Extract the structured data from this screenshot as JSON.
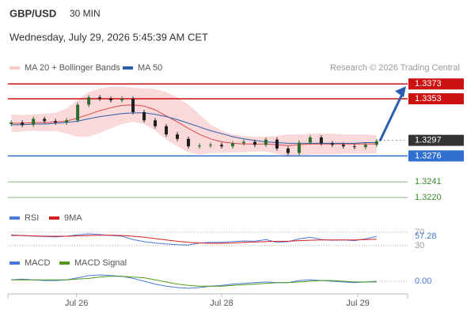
{
  "header": {
    "symbol": "GBP/USD",
    "interval": "30 MIN",
    "datetime": "Wednesday, July 29, 2026 5:45:39 AM CET",
    "source": "Research © 2026 Trading Central"
  },
  "chart_data": [
    {
      "type": "candlestick",
      "x_labels": [
        {
          "value": 5.9,
          "label": "Jul 26"
        },
        {
          "value": 19,
          "label": "Jul 28"
        },
        {
          "value": 31.3,
          "label": "Jul 29"
        }
      ],
      "xlim": [
        -0.3,
        35.8
      ],
      "ylim": [
        1.3204,
        1.3385
      ],
      "up_color": "#2e6b2e",
      "down_color": "#1e1e1e",
      "open": [
        1.3319,
        1.3321,
        1.3318,
        1.3326,
        1.3323,
        1.3321,
        1.3324,
        1.3345,
        1.3355,
        1.3353,
        1.3351,
        1.3353,
        1.3335,
        1.3324,
        1.3316,
        1.3305,
        1.3299,
        1.3289,
        1.329,
        1.3291,
        1.3289,
        1.3293,
        1.3295,
        1.3291,
        1.3298,
        1.3286,
        1.328,
        1.3294,
        1.3301,
        1.3293,
        1.3291,
        1.3289,
        1.3288,
        1.3291
      ],
      "high": [
        1.3324,
        1.3324,
        1.3329,
        1.3329,
        1.3326,
        1.3327,
        1.3348,
        1.3358,
        1.3358,
        1.3356,
        1.3356,
        1.3356,
        1.3338,
        1.3327,
        1.3319,
        1.3308,
        1.3302,
        1.3293,
        1.3294,
        1.3294,
        1.3296,
        1.3298,
        1.3298,
        1.3301,
        1.3301,
        1.3289,
        1.3297,
        1.3304,
        1.3304,
        1.3296,
        1.3294,
        1.3292,
        1.3294,
        1.3299
      ],
      "low": [
        1.3316,
        1.3315,
        1.3315,
        1.332,
        1.3318,
        1.3318,
        1.3321,
        1.3342,
        1.335,
        1.3348,
        1.3348,
        1.3332,
        1.3321,
        1.3313,
        1.3302,
        1.3296,
        1.3286,
        1.3286,
        1.3287,
        1.3286,
        1.3286,
        1.329,
        1.3288,
        1.3288,
        1.3283,
        1.3277,
        1.3277,
        1.3291,
        1.329,
        1.3288,
        1.3286,
        1.3285,
        1.3285,
        1.3288
      ],
      "close": [
        1.3321,
        1.3318,
        1.3326,
        1.3323,
        1.3321,
        1.3324,
        1.3345,
        1.3355,
        1.3353,
        1.3351,
        1.3353,
        1.3335,
        1.3324,
        1.3316,
        1.3305,
        1.3299,
        1.3289,
        1.329,
        1.3291,
        1.3289,
        1.3293,
        1.3295,
        1.3291,
        1.3298,
        1.3286,
        1.328,
        1.3294,
        1.3301,
        1.3293,
        1.3291,
        1.3289,
        1.3288,
        1.3291,
        1.3296
      ],
      "series": [
        {
          "name": "MA 20 + Bollinger Bands",
          "color": "#e04848",
          "band_color": "#f7c9c9",
          "values": [
            1.332,
            1.332,
            1.3321,
            1.3321,
            1.3322,
            1.3323,
            1.3327,
            1.3332,
            1.3337,
            1.3341,
            1.3344,
            1.3345,
            1.3343,
            1.3338,
            1.333,
            1.3322,
            1.3313,
            1.3305,
            1.3299,
            1.3295,
            1.3293,
            1.3292,
            1.3292,
            1.3292,
            1.3291,
            1.329,
            1.3291,
            1.3292,
            1.3292,
            1.3292,
            1.3292,
            1.3292,
            1.3292,
            1.3292
          ],
          "upper": [
            1.3332,
            1.3331,
            1.3332,
            1.3333,
            1.3334,
            1.334,
            1.3352,
            1.3362,
            1.3367,
            1.3369,
            1.3369,
            1.3368,
            1.3367,
            1.3366,
            1.3362,
            1.3355,
            1.3345,
            1.3332,
            1.3318,
            1.331,
            1.3305,
            1.3303,
            1.3302,
            1.3302,
            1.3303,
            1.3305,
            1.3305,
            1.3306,
            1.3306,
            1.3306,
            1.3305,
            1.3305,
            1.3305,
            1.3304
          ],
          "lower": [
            1.3308,
            1.3309,
            1.331,
            1.3309,
            1.331,
            1.3306,
            1.3302,
            1.3302,
            1.3307,
            1.3313,
            1.3319,
            1.3322,
            1.3319,
            1.331,
            1.3298,
            1.3289,
            1.3281,
            1.3278,
            1.328,
            1.328,
            1.3281,
            1.3281,
            1.3282,
            1.3282,
            1.3279,
            1.3275,
            1.3277,
            1.3278,
            1.3278,
            1.3278,
            1.3279,
            1.3279,
            1.3279,
            1.328
          ]
        },
        {
          "name": "MA 50",
          "color": "#2c5ea8",
          "values": [
            1.3318,
            1.3318,
            1.3319,
            1.3319,
            1.332,
            1.3321,
            1.3323,
            1.3326,
            1.3329,
            1.3331,
            1.3333,
            1.3334,
            1.3334,
            1.3332,
            1.3329,
            1.3325,
            1.332,
            1.3315,
            1.331,
            1.3306,
            1.3302,
            1.3299,
            1.3297,
            1.3295,
            1.3294,
            1.3293,
            1.3293,
            1.3293,
            1.3293,
            1.3293,
            1.3293,
            1.3293,
            1.3294,
            1.3294
          ]
        }
      ],
      "levels": [
        {
          "value": 1.3373,
          "label": "1.3373",
          "color": "#cc1111",
          "style": "solid",
          "box": true
        },
        {
          "value": 1.3353,
          "label": "1.3353",
          "color": "#cc1111",
          "style": "solid",
          "box": true
        },
        {
          "value": 1.3297,
          "label": "1.3297",
          "color": "#333333",
          "style": "dotted",
          "box": true
        },
        {
          "value": 1.3276,
          "label": "1.3276",
          "color": "#2f6fd0",
          "style": "solid",
          "box": true
        },
        {
          "value": 1.3241,
          "label": "1.3241",
          "color": "#3a8a2a",
          "style": "solid",
          "box": false
        },
        {
          "value": 1.322,
          "label": "1.3220",
          "color": "#3a8a2a",
          "style": "solid",
          "box": false
        }
      ],
      "arrow_color": "#2a5db0"
    },
    {
      "type": "line",
      "ylim": [
        23,
        79
      ],
      "yticks": [
        70,
        30
      ],
      "series": [
        {
          "name": "RSI",
          "color": "#4a78d8",
          "values": [
            62,
            60,
            58,
            57,
            56,
            58,
            62,
            65,
            63,
            60,
            58,
            48,
            42,
            38,
            35,
            33,
            32,
            38,
            40,
            40,
            42,
            44,
            43,
            48,
            40,
            42,
            50,
            55,
            48,
            46,
            47,
            45,
            50,
            57.28
          ]
        },
        {
          "name": "9MA",
          "color": "#d81e1e",
          "values": [
            60,
            60,
            59,
            58,
            58,
            58,
            59,
            60,
            61,
            61,
            60,
            58,
            55,
            51,
            47,
            43,
            40,
            38,
            37,
            37,
            38,
            40,
            41,
            42,
            43,
            43,
            45,
            46,
            47,
            47,
            47,
            47,
            48,
            49
          ]
        }
      ]
    },
    {
      "type": "line",
      "ylim": [
        -0.0018,
        0.0018
      ],
      "yticks": [
        {
          "value": 0,
          "label": "0.00"
        }
      ],
      "series": [
        {
          "name": "MACD",
          "color": "#4a78d8",
          "values": [
            0.0002,
            0.0003,
            0.0002,
            0.0001,
            0.0001,
            0.0002,
            0.0005,
            0.0008,
            0.0009,
            0.0008,
            0.0007,
            0.0004,
            0.0,
            -0.0004,
            -0.0007,
            -0.0009,
            -0.001,
            -0.0009,
            -0.0007,
            -0.0006,
            -0.0004,
            -0.0003,
            -0.0002,
            -0.0001,
            -0.0002,
            -0.0002,
            0.0001,
            0.0002,
            0.0001,
            0.0,
            -0.0001,
            -0.0002,
            -0.0001,
            0.0
          ]
        },
        {
          "name": "MACD Signal",
          "color": "#4f9a1a",
          "values": [
            0.0002,
            0.0002,
            0.0002,
            0.0002,
            0.0002,
            0.0002,
            0.0003,
            0.0004,
            0.0006,
            0.0007,
            0.0007,
            0.0006,
            0.0005,
            0.0002,
            -0.0001,
            -0.0004,
            -0.0006,
            -0.0007,
            -0.0007,
            -0.0007,
            -0.0006,
            -0.0005,
            -0.0004,
            -0.0003,
            -0.0002,
            -0.0002,
            -0.0001,
            0.0,
            0.0001,
            0.0001,
            0.0,
            -0.0001,
            -0.0001,
            -0.0001
          ]
        }
      ]
    }
  ]
}
